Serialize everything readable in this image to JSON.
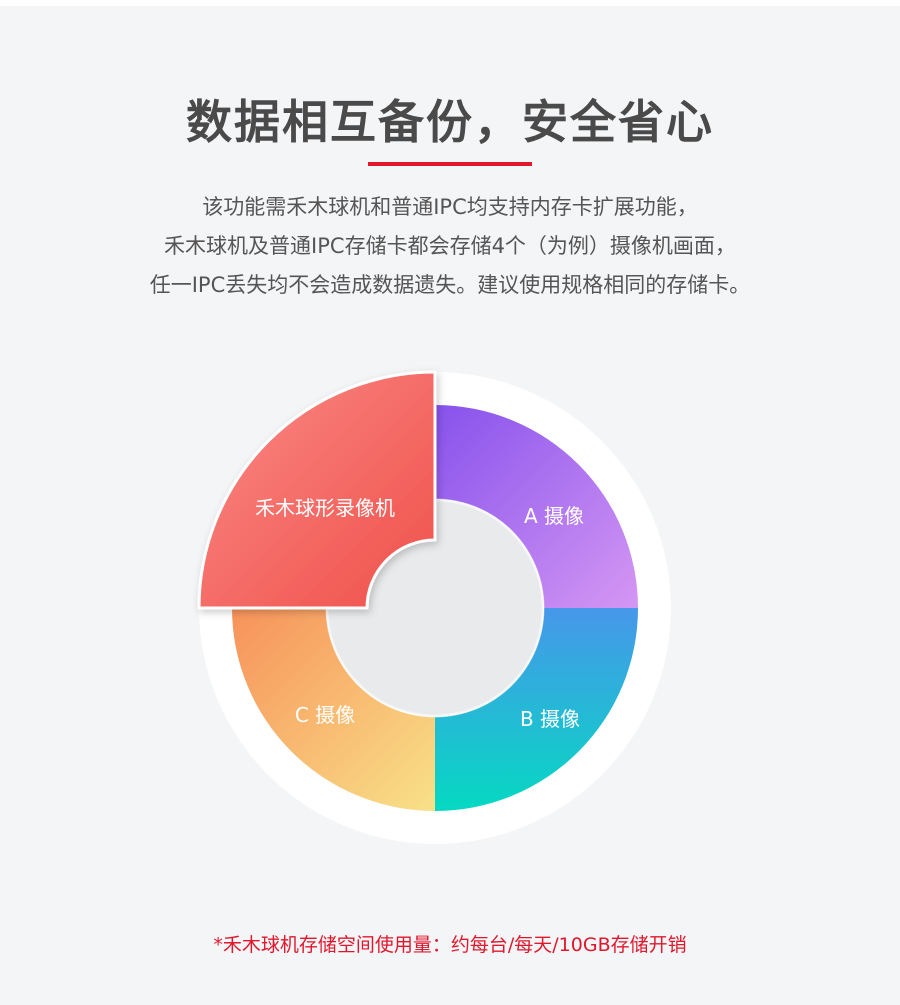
{
  "title": "数据相互备份，安全省心",
  "accent_color": "#e0182d",
  "description": [
    "该功能需禾木球机和普通IPC均支持内存卡扩展功能，",
    "禾木球机及普通IPC存储卡都会存储4个（为例）摄像机画面，",
    "任一IPC丢失均不会造成数据遗失。建议使用规格相同的存储卡。"
  ],
  "diagram": {
    "highlight": {
      "label": "禾木球形录像机",
      "colors": [
        "#fa8a86",
        "#f0504a"
      ]
    },
    "segments": [
      {
        "label": "A 摄像",
        "colors": [
          "#8752ec",
          "#d597f3"
        ]
      },
      {
        "label": "B 摄像",
        "colors": [
          "#4797ea",
          "#05d9c2"
        ]
      },
      {
        "label": "C 摄像",
        "colors": [
          "#f7925a",
          "#f8e188"
        ]
      }
    ]
  },
  "footnote": "*禾木球机存储空间使用量：约每台/每天/10GB存储开销"
}
